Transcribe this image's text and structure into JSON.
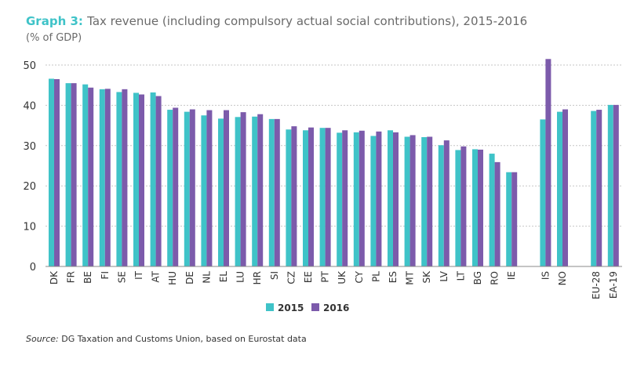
{
  "header": {
    "title_prefix": "Graph 3",
    "title": "Tax revenue (including compulsory actual social contributions), 2015-2016",
    "subtitle": "(% of GDP)"
  },
  "source": {
    "label": "Source:",
    "text": " DG Taxation and Customs Union, based on Eurostat data"
  },
  "colors": {
    "series_2015": "#3fc3c8",
    "series_2016": "#7c5bab",
    "grid": "#c6c6c6"
  },
  "chart_data": {
    "type": "bar",
    "title": "Tax revenue (including compulsory actual social contributions), 2015-2016",
    "ylabel": "(% of GDP)",
    "ylim": [
      0,
      50
    ],
    "yticks": [
      0,
      10,
      20,
      30,
      40,
      50
    ],
    "grid": true,
    "legend": "bottom-center",
    "categories": [
      "DK",
      "FR",
      "BE",
      "FI",
      "SE",
      "IT",
      "AT",
      "HU",
      "DE",
      "NL",
      "EL",
      "LU",
      "HR",
      "SI",
      "CZ",
      "EE",
      "PT",
      "UK",
      "CY",
      "PL",
      "ES",
      "MT",
      "SK",
      "LV",
      "LT",
      "BG",
      "RO",
      "IE",
      "",
      "IS",
      "NO",
      "",
      "EU-28",
      "EA-19"
    ],
    "series": [
      {
        "name": "2015",
        "values": [
          46.6,
          45.5,
          45.2,
          44.0,
          43.3,
          43.1,
          43.2,
          38.9,
          38.4,
          37.5,
          36.7,
          37.1,
          37.2,
          36.6,
          34.0,
          33.8,
          34.4,
          33.2,
          33.3,
          32.4,
          33.8,
          32.2,
          32.1,
          30.1,
          28.9,
          29.1,
          28.0,
          23.4,
          null,
          36.5,
          38.4,
          null,
          38.6,
          40.1
        ]
      },
      {
        "name": "2016",
        "values": [
          46.5,
          45.5,
          44.4,
          44.1,
          44.0,
          42.7,
          42.3,
          39.4,
          39.0,
          38.8,
          38.8,
          38.3,
          37.8,
          36.6,
          34.8,
          34.5,
          34.4,
          33.8,
          33.7,
          33.5,
          33.3,
          32.6,
          32.2,
          31.3,
          29.8,
          29.0,
          25.9,
          23.4,
          null,
          51.5,
          39.0,
          null,
          38.9,
          40.1
        ]
      }
    ]
  }
}
